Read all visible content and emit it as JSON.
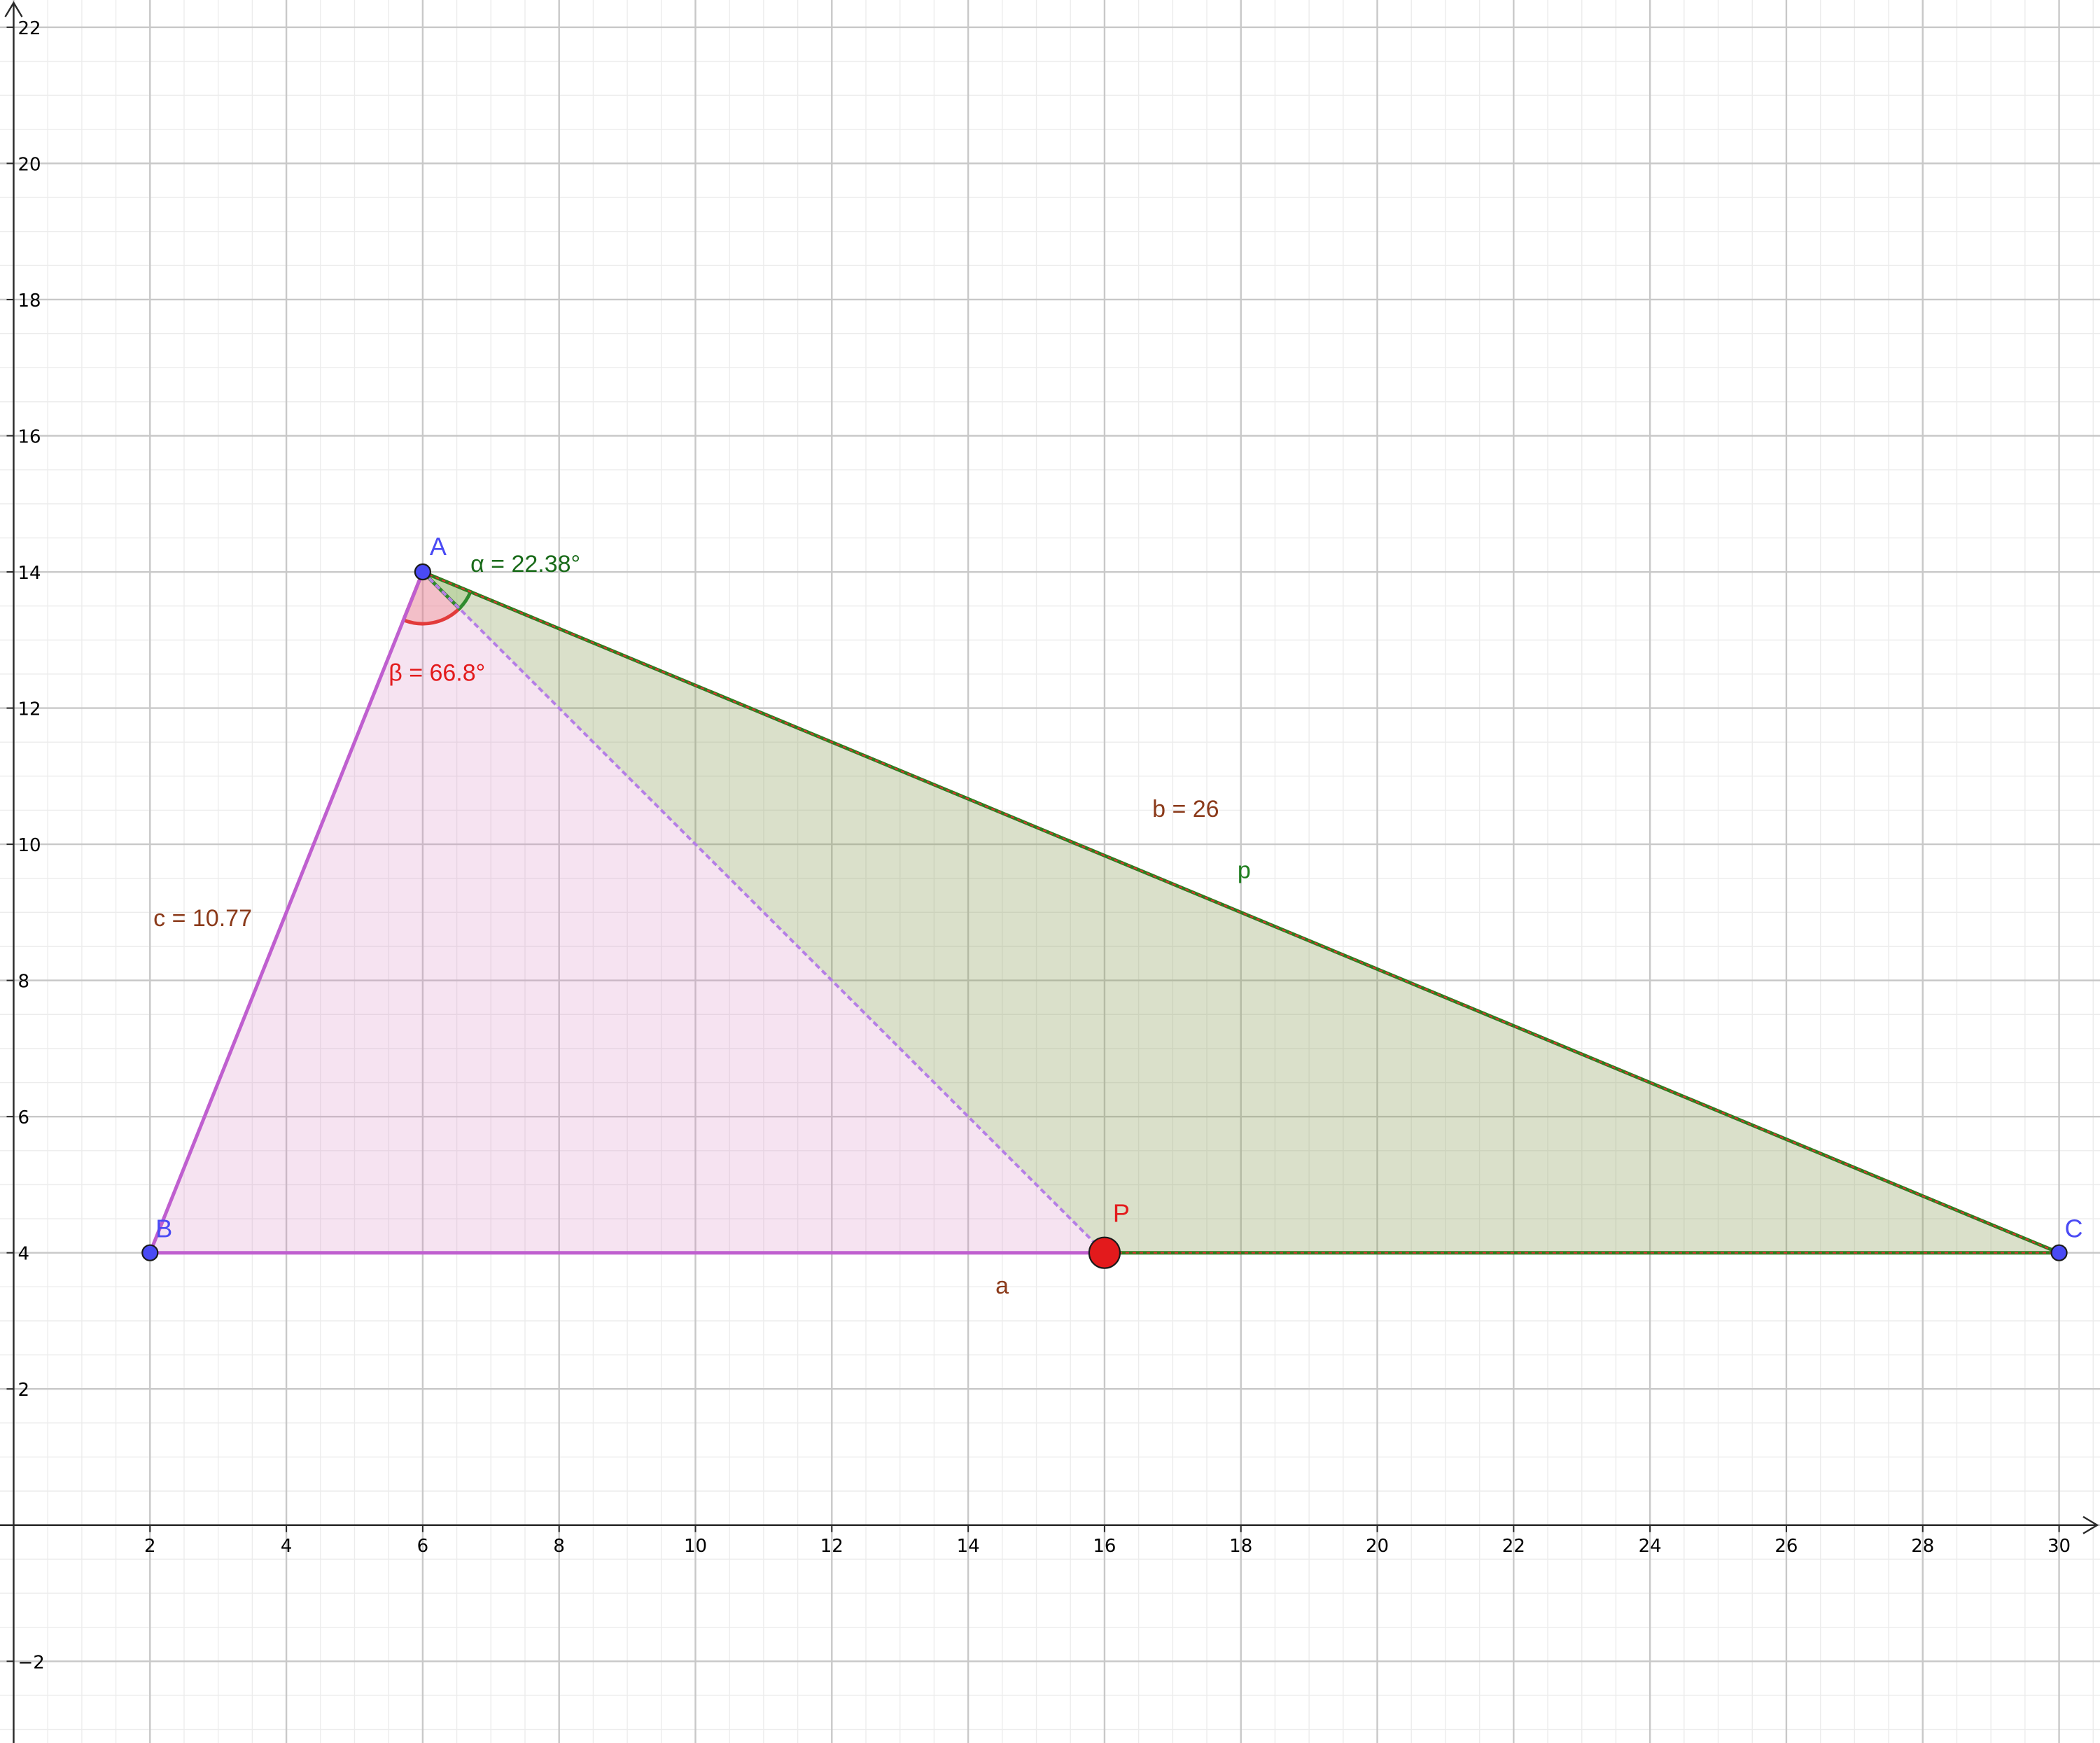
{
  "axes": {
    "x_range": [
      -0.2,
      30.6
    ],
    "y_range": [
      -3.2,
      22.4
    ],
    "x_ticks": [
      2,
      4,
      6,
      8,
      10,
      12,
      14,
      16,
      18,
      20,
      22,
      24,
      26,
      28,
      30
    ],
    "y_ticks": [
      -2,
      2,
      4,
      6,
      8,
      10,
      12,
      14,
      16,
      18,
      20,
      22
    ],
    "major_grid_step": 2,
    "minor_grid_step": 0.5
  },
  "points": [
    {
      "name": "A",
      "x": 6,
      "y": 14,
      "color": "#4a4af4"
    },
    {
      "name": "B",
      "x": 2,
      "y": 4,
      "color": "#4a4af4"
    },
    {
      "name": "C",
      "x": 30,
      "y": 4,
      "color": "#4a4af4"
    },
    {
      "name": "P",
      "x": 16,
      "y": 4,
      "color": "#e31a1c"
    }
  ],
  "labels": {
    "alpha": "α = 22.38°",
    "beta": "β = 66.8°",
    "side_b": "b = 26",
    "side_c": "c = 10.77",
    "side_a": "a",
    "segment_p": "p"
  },
  "colors": {
    "pink_fill": "#d67fc0",
    "pink_stroke": "#bf5fcf",
    "green_fill": "#8ba05a",
    "green_stroke": "#2e7d1e",
    "red_dash": "#e03030",
    "brown_label": "#8b3a1a",
    "green_label": "#1e7d1e",
    "dark_green_label": "#1a6b1a",
    "red_label": "#e31a1c"
  }
}
